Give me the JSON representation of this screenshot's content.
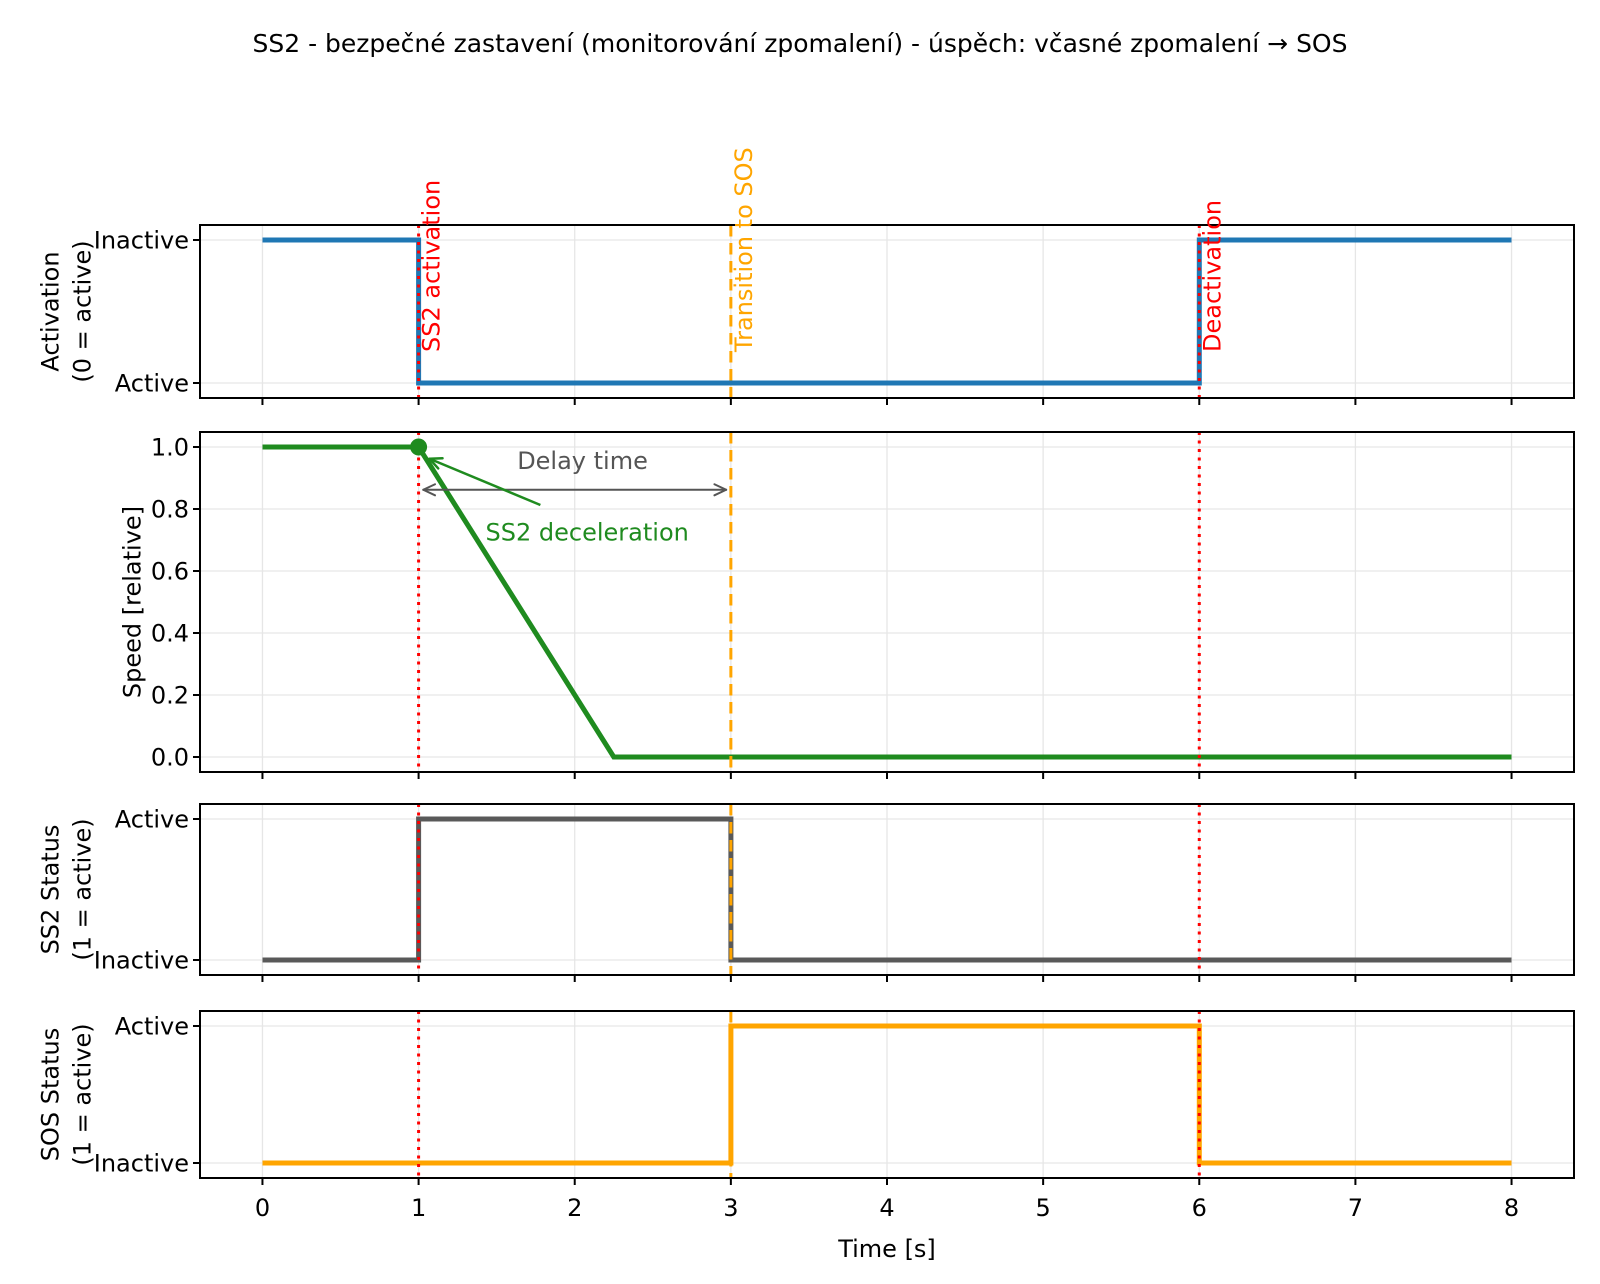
{
  "title": "SS2 - bezpečné zastavení (monitorování zpomalení) - úspěch: včasné zpomalení → SOS",
  "xaxis": {
    "label": "Time [s]",
    "ticks": [
      0,
      1,
      2,
      3,
      4,
      5,
      6,
      7,
      8
    ],
    "min": -0.4,
    "max": 8.4
  },
  "colors": {
    "activation": "#1f77b4",
    "speed": "#1f8b1f",
    "ss2_status": "#595959",
    "sos_status": "#ffa500",
    "event_red": "#ff0000",
    "event_orange": "#ffa500",
    "annotation_gray": "#555555",
    "grid": "#e6e6e6",
    "spine": "#000000"
  },
  "events": [
    {
      "t": 1,
      "label": "SS2 activation",
      "color": "#ff0000",
      "dash": "3 5.5"
    },
    {
      "t": 3,
      "label": "Transition to SOS",
      "color": "#ffa500",
      "dash": "11.5 6.5"
    },
    {
      "t": 6,
      "label": "Deactivation",
      "color": "#ff0000",
      "dash": "3 5.5"
    }
  ],
  "chart_data": [
    {
      "type": "step",
      "name": "activation",
      "ylabel": [
        "Activation",
        "(0 = active)"
      ],
      "yticks": [
        {
          "v": 1,
          "label": "Inactive"
        },
        {
          "v": 0,
          "label": "Active"
        }
      ],
      "color": "#1f77b4",
      "points": [
        [
          0,
          1
        ],
        [
          1,
          1
        ],
        [
          1,
          0
        ],
        [
          6,
          0
        ],
        [
          6,
          1
        ],
        [
          8,
          1
        ]
      ]
    },
    {
      "type": "line",
      "name": "speed",
      "ylabel": [
        "Speed [relative]"
      ],
      "yticks": [
        {
          "v": 1.0,
          "label": "1.0"
        },
        {
          "v": 0.8,
          "label": "0.8"
        },
        {
          "v": 0.6,
          "label": "0.6"
        },
        {
          "v": 0.4,
          "label": "0.4"
        },
        {
          "v": 0.2,
          "label": "0.2"
        },
        {
          "v": 0.0,
          "label": "0.0"
        }
      ],
      "color": "#1f8b1f",
      "points": [
        [
          0,
          1
        ],
        [
          1,
          1
        ],
        [
          2.25,
          0
        ],
        [
          8,
          0
        ]
      ],
      "marker": {
        "t": 1,
        "v": 1
      },
      "annotations": [
        {
          "id": "delay-time-label",
          "text": "Delay time",
          "color": "#555555",
          "t": 2.05,
          "v": 0.955
        },
        {
          "id": "ss2-deceleration-label",
          "text": "SS2 deceleration",
          "color": "#1f8b1f",
          "t": 2.08,
          "v": 0.725
        }
      ],
      "delay_arrow": {
        "t1": 1.03,
        "t2": 2.97,
        "v": 0.862,
        "color": "#555555"
      },
      "decel_arrow": {
        "from": [
          1.78,
          0.813
        ],
        "to": [
          1.07,
          0.962
        ],
        "color": "#1f8b1f"
      }
    },
    {
      "type": "step",
      "name": "ss2-status",
      "ylabel": [
        "SS2 Status",
        "(1 = active)"
      ],
      "yticks": [
        {
          "v": 1,
          "label": "Active"
        },
        {
          "v": 0,
          "label": "Inactive"
        }
      ],
      "color": "#595959",
      "points": [
        [
          0,
          0
        ],
        [
          1,
          0
        ],
        [
          1,
          1
        ],
        [
          3,
          1
        ],
        [
          3,
          0
        ],
        [
          8,
          0
        ]
      ]
    },
    {
      "type": "step",
      "name": "sos-status",
      "ylabel": [
        "SOS Status",
        "(1 = active)"
      ],
      "yticks": [
        {
          "v": 1,
          "label": "Active"
        },
        {
          "v": 0,
          "label": "Inactive"
        }
      ],
      "color": "#ffa500",
      "points": [
        [
          0,
          0
        ],
        [
          3,
          0
        ],
        [
          3,
          1
        ],
        [
          6,
          1
        ],
        [
          6,
          0
        ],
        [
          8,
          0
        ]
      ]
    }
  ]
}
